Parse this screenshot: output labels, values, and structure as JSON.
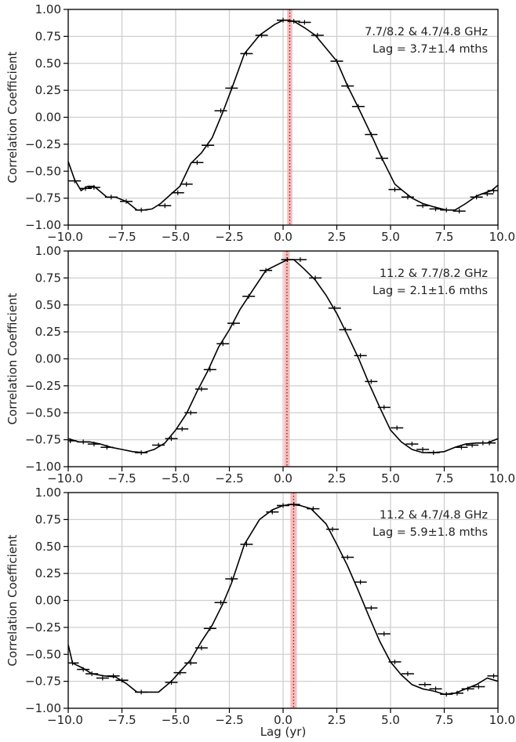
{
  "chart_data": [
    {
      "type": "line",
      "ylabel": "Correlation Coefficient",
      "xlabel": "",
      "xlim": [
        -10,
        10
      ],
      "ylim": [
        -1,
        1
      ],
      "xticks": [
        "-10.0",
        "-7.5",
        "-5.0",
        "-2.5",
        "0.0",
        "2.5",
        "5.0",
        "7.5",
        "10.0"
      ],
      "yticks": [
        "-1.00",
        "-0.75",
        "-0.50",
        "-0.25",
        "0.00",
        "0.25",
        "0.50",
        "0.75",
        "1.00"
      ],
      "grid": true,
      "annotation_lines": [
        "7.7/8.2 & 4.7/4.8 GHz",
        "Lag = 3.7±1.4 mths"
      ],
      "peak_lag_yr": 0.31,
      "peak_lag_err_yr": 0.12,
      "x": [
        -10,
        -9.7,
        -9.4,
        -9.1,
        -8.8,
        -8.5,
        -8.2,
        -7.8,
        -7.3,
        -6.8,
        -6.5,
        -6.1,
        -5.7,
        -5.2,
        -4.8,
        -4.3,
        -3.8,
        -3.3,
        -2.8,
        -2.4,
        -1.8,
        -1.1,
        -0.4,
        0.0,
        0.2,
        0.5,
        1.0,
        1.5,
        2.5,
        3.0,
        3.5,
        4.1,
        4.6,
        5.2,
        5.5,
        6.0,
        6.5,
        7.0,
        7.6,
        8.0,
        8.5,
        9.0,
        9.4,
        9.7,
        10.0
      ],
      "y": [
        -0.41,
        -0.58,
        -0.68,
        -0.64,
        -0.64,
        -0.69,
        -0.74,
        -0.74,
        -0.78,
        -0.86,
        -0.86,
        -0.85,
        -0.8,
        -0.71,
        -0.64,
        -0.43,
        -0.33,
        -0.19,
        0.05,
        0.26,
        0.59,
        0.76,
        0.86,
        0.9,
        0.9,
        0.89,
        0.83,
        0.76,
        0.52,
        0.29,
        0.09,
        -0.16,
        -0.38,
        -0.62,
        -0.67,
        -0.75,
        -0.8,
        -0.83,
        -0.86,
        -0.86,
        -0.8,
        -0.73,
        -0.7,
        -0.68,
        -0.63
      ],
      "bars": [
        {
          "x": -9.7,
          "y": -0.59
        },
        {
          "x": -9.2,
          "y": -0.66
        },
        {
          "x": -8.8,
          "y": -0.65
        },
        {
          "x": -8.0,
          "y": -0.74
        },
        {
          "x": -7.3,
          "y": -0.78
        },
        {
          "x": -6.6,
          "y": -0.86
        },
        {
          "x": -5.5,
          "y": -0.82
        },
        {
          "x": -4.9,
          "y": -0.7
        },
        {
          "x": -4.5,
          "y": -0.62
        },
        {
          "x": -4.0,
          "y": -0.42
        },
        {
          "x": -3.5,
          "y": -0.26
        },
        {
          "x": -2.9,
          "y": 0.06
        },
        {
          "x": -2.4,
          "y": 0.27
        },
        {
          "x": -1.7,
          "y": 0.59
        },
        {
          "x": -1.0,
          "y": 0.76
        },
        {
          "x": 0.0,
          "y": 0.9
        },
        {
          "x": 0.5,
          "y": 0.89
        },
        {
          "x": 1.0,
          "y": 0.88
        },
        {
          "x": 1.6,
          "y": 0.76
        },
        {
          "x": 2.5,
          "y": 0.52
        },
        {
          "x": 3.0,
          "y": 0.29
        },
        {
          "x": 3.5,
          "y": 0.1
        },
        {
          "x": 4.1,
          "y": -0.16
        },
        {
          "x": 4.6,
          "y": -0.38
        },
        {
          "x": 5.2,
          "y": -0.67
        },
        {
          "x": 5.8,
          "y": -0.74
        },
        {
          "x": 6.5,
          "y": -0.82
        },
        {
          "x": 7.1,
          "y": -0.85
        },
        {
          "x": 7.6,
          "y": -0.86
        },
        {
          "x": 8.2,
          "y": -0.87
        },
        {
          "x": 9.0,
          "y": -0.74
        },
        {
          "x": 9.5,
          "y": -0.71
        },
        {
          "x": 9.8,
          "y": -0.68
        }
      ]
    },
    {
      "type": "line",
      "ylabel": "Correlation Coefficient",
      "xlabel": "",
      "xlim": [
        -10,
        10
      ],
      "ylim": [
        -1,
        1
      ],
      "xticks": [
        "-10.0",
        "-7.5",
        "-5.0",
        "-2.5",
        "0.0",
        "2.5",
        "5.0",
        "7.5",
        "10.0"
      ],
      "yticks": [
        "-1.00",
        "-0.75",
        "-0.50",
        "-0.25",
        "0.00",
        "0.25",
        "0.50",
        "0.75",
        "1.00"
      ],
      "grid": true,
      "annotation_lines": [
        "11.2 & 7.7/8.2 GHz",
        "Lag = 2.1±1.6 mths"
      ],
      "peak_lag_yr": 0.18,
      "peak_lag_err_yr": 0.13,
      "x": [
        -10,
        -9.5,
        -9.0,
        -8.5,
        -8.0,
        -7.5,
        -7.0,
        -6.5,
        -6.0,
        -5.5,
        -5.0,
        -4.5,
        -4.0,
        -3.5,
        -3.0,
        -2.5,
        -2.0,
        -1.5,
        -0.8,
        0.2,
        0.5,
        1.0,
        1.5,
        2.0,
        2.5,
        3.0,
        3.5,
        4.0,
        4.5,
        5.0,
        5.5,
        6.0,
        6.5,
        7.0,
        7.5,
        8.0,
        8.5,
        9.0,
        9.5,
        10.0
      ],
      "y": [
        -0.74,
        -0.77,
        -0.77,
        -0.79,
        -0.82,
        -0.84,
        -0.86,
        -0.87,
        -0.84,
        -0.78,
        -0.66,
        -0.51,
        -0.3,
        -0.11,
        0.11,
        0.27,
        0.46,
        0.61,
        0.82,
        0.92,
        0.92,
        0.83,
        0.73,
        0.59,
        0.42,
        0.22,
        0.01,
        -0.23,
        -0.45,
        -0.66,
        -0.77,
        -0.84,
        -0.87,
        -0.87,
        -0.86,
        -0.82,
        -0.79,
        -0.78,
        -0.78,
        -0.74
      ],
      "bars": [
        {
          "x": -9.9,
          "y": -0.76
        },
        {
          "x": -9.3,
          "y": -0.77
        },
        {
          "x": -8.8,
          "y": -0.79
        },
        {
          "x": -8.2,
          "y": -0.82
        },
        {
          "x": -6.6,
          "y": -0.87
        },
        {
          "x": -5.8,
          "y": -0.8
        },
        {
          "x": -5.2,
          "y": -0.74
        },
        {
          "x": -4.7,
          "y": -0.65
        },
        {
          "x": -4.3,
          "y": -0.5
        },
        {
          "x": -3.8,
          "y": -0.28
        },
        {
          "x": -3.4,
          "y": -0.1
        },
        {
          "x": -2.8,
          "y": 0.14
        },
        {
          "x": -2.3,
          "y": 0.33
        },
        {
          "x": -1.6,
          "y": 0.58
        },
        {
          "x": -0.8,
          "y": 0.82
        },
        {
          "x": 0.2,
          "y": 0.92
        },
        {
          "x": 0.8,
          "y": 0.92
        },
        {
          "x": 1.5,
          "y": 0.75
        },
        {
          "x": 2.4,
          "y": 0.47
        },
        {
          "x": 2.9,
          "y": 0.27
        },
        {
          "x": 3.6,
          "y": 0.03
        },
        {
          "x": 4.1,
          "y": -0.21
        },
        {
          "x": 4.7,
          "y": -0.45
        },
        {
          "x": 5.3,
          "y": -0.64
        },
        {
          "x": 6.0,
          "y": -0.79
        },
        {
          "x": 6.5,
          "y": -0.84
        },
        {
          "x": 7.0,
          "y": -0.87
        },
        {
          "x": 8.3,
          "y": -0.82
        },
        {
          "x": 8.8,
          "y": -0.8
        },
        {
          "x": 9.3,
          "y": -0.78
        },
        {
          "x": 9.6,
          "y": -0.78
        }
      ]
    },
    {
      "type": "line",
      "ylabel": "Correlation Coefficient",
      "xlabel": "Lag (yr)",
      "xlim": [
        -10,
        10
      ],
      "ylim": [
        -1,
        1
      ],
      "xticks": [
        "-10.0",
        "-7.5",
        "-5.0",
        "-2.5",
        "0.0",
        "2.5",
        "5.0",
        "7.5",
        "10.0"
      ],
      "yticks": [
        "-1.00",
        "-0.75",
        "-0.50",
        "-0.25",
        "0.00",
        "0.25",
        "0.50",
        "0.75",
        "1.00"
      ],
      "grid": true,
      "annotation_lines": [
        "11.2 & 4.7/4.8 GHz",
        "Lag = 5.9±1.8 mths"
      ],
      "peak_lag_yr": 0.49,
      "peak_lag_err_yr": 0.15,
      "x": [
        -10,
        -9.8,
        -9.3,
        -8.9,
        -8.3,
        -7.8,
        -7.3,
        -6.8,
        -6.3,
        -5.8,
        -5.2,
        -4.8,
        -4.3,
        -3.8,
        -3.3,
        -2.8,
        -2.4,
        -1.8,
        -1.1,
        -0.5,
        0.0,
        0.4,
        0.8,
        1.3,
        2.0,
        2.5,
        3.0,
        3.5,
        4.0,
        4.5,
        5.0,
        5.5,
        6.0,
        6.5,
        7.0,
        7.5,
        8.0,
        8.5,
        9.0,
        9.5,
        10.0
      ],
      "y": [
        -0.41,
        -0.58,
        -0.63,
        -0.68,
        -0.7,
        -0.71,
        -0.77,
        -0.85,
        -0.85,
        -0.85,
        -0.75,
        -0.66,
        -0.55,
        -0.38,
        -0.23,
        -0.03,
        0.16,
        0.52,
        0.75,
        0.84,
        0.88,
        0.89,
        0.88,
        0.85,
        0.71,
        0.52,
        0.32,
        0.09,
        -0.15,
        -0.38,
        -0.57,
        -0.69,
        -0.78,
        -0.82,
        -0.84,
        -0.87,
        -0.86,
        -0.82,
        -0.78,
        -0.72,
        -0.75
      ],
      "bars": [
        {
          "x": -9.8,
          "y": -0.58
        },
        {
          "x": -9.3,
          "y": -0.64
        },
        {
          "x": -8.9,
          "y": -0.68
        },
        {
          "x": -8.4,
          "y": -0.72
        },
        {
          "x": -7.9,
          "y": -0.7
        },
        {
          "x": -7.5,
          "y": -0.74
        },
        {
          "x": -6.6,
          "y": -0.85
        },
        {
          "x": -5.2,
          "y": -0.76
        },
        {
          "x": -4.8,
          "y": -0.67
        },
        {
          "x": -4.3,
          "y": -0.58
        },
        {
          "x": -3.8,
          "y": -0.44
        },
        {
          "x": -3.4,
          "y": -0.26
        },
        {
          "x": -2.9,
          "y": -0.02
        },
        {
          "x": -2.4,
          "y": 0.2
        },
        {
          "x": -1.7,
          "y": 0.52
        },
        {
          "x": -0.5,
          "y": 0.82
        },
        {
          "x": 0.0,
          "y": 0.88
        },
        {
          "x": 0.5,
          "y": 0.89
        },
        {
          "x": 1.4,
          "y": 0.85
        },
        {
          "x": 2.3,
          "y": 0.66
        },
        {
          "x": 3.0,
          "y": 0.4
        },
        {
          "x": 3.6,
          "y": 0.17
        },
        {
          "x": 4.1,
          "y": -0.07
        },
        {
          "x": 4.7,
          "y": -0.31
        },
        {
          "x": 5.2,
          "y": -0.57
        },
        {
          "x": 5.8,
          "y": -0.68
        },
        {
          "x": 6.6,
          "y": -0.78
        },
        {
          "x": 7.1,
          "y": -0.82
        },
        {
          "x": 7.6,
          "y": -0.87
        },
        {
          "x": 8.1,
          "y": -0.86
        },
        {
          "x": 8.6,
          "y": -0.82
        },
        {
          "x": 9.1,
          "y": -0.8
        },
        {
          "x": 9.8,
          "y": -0.7
        }
      ]
    }
  ]
}
